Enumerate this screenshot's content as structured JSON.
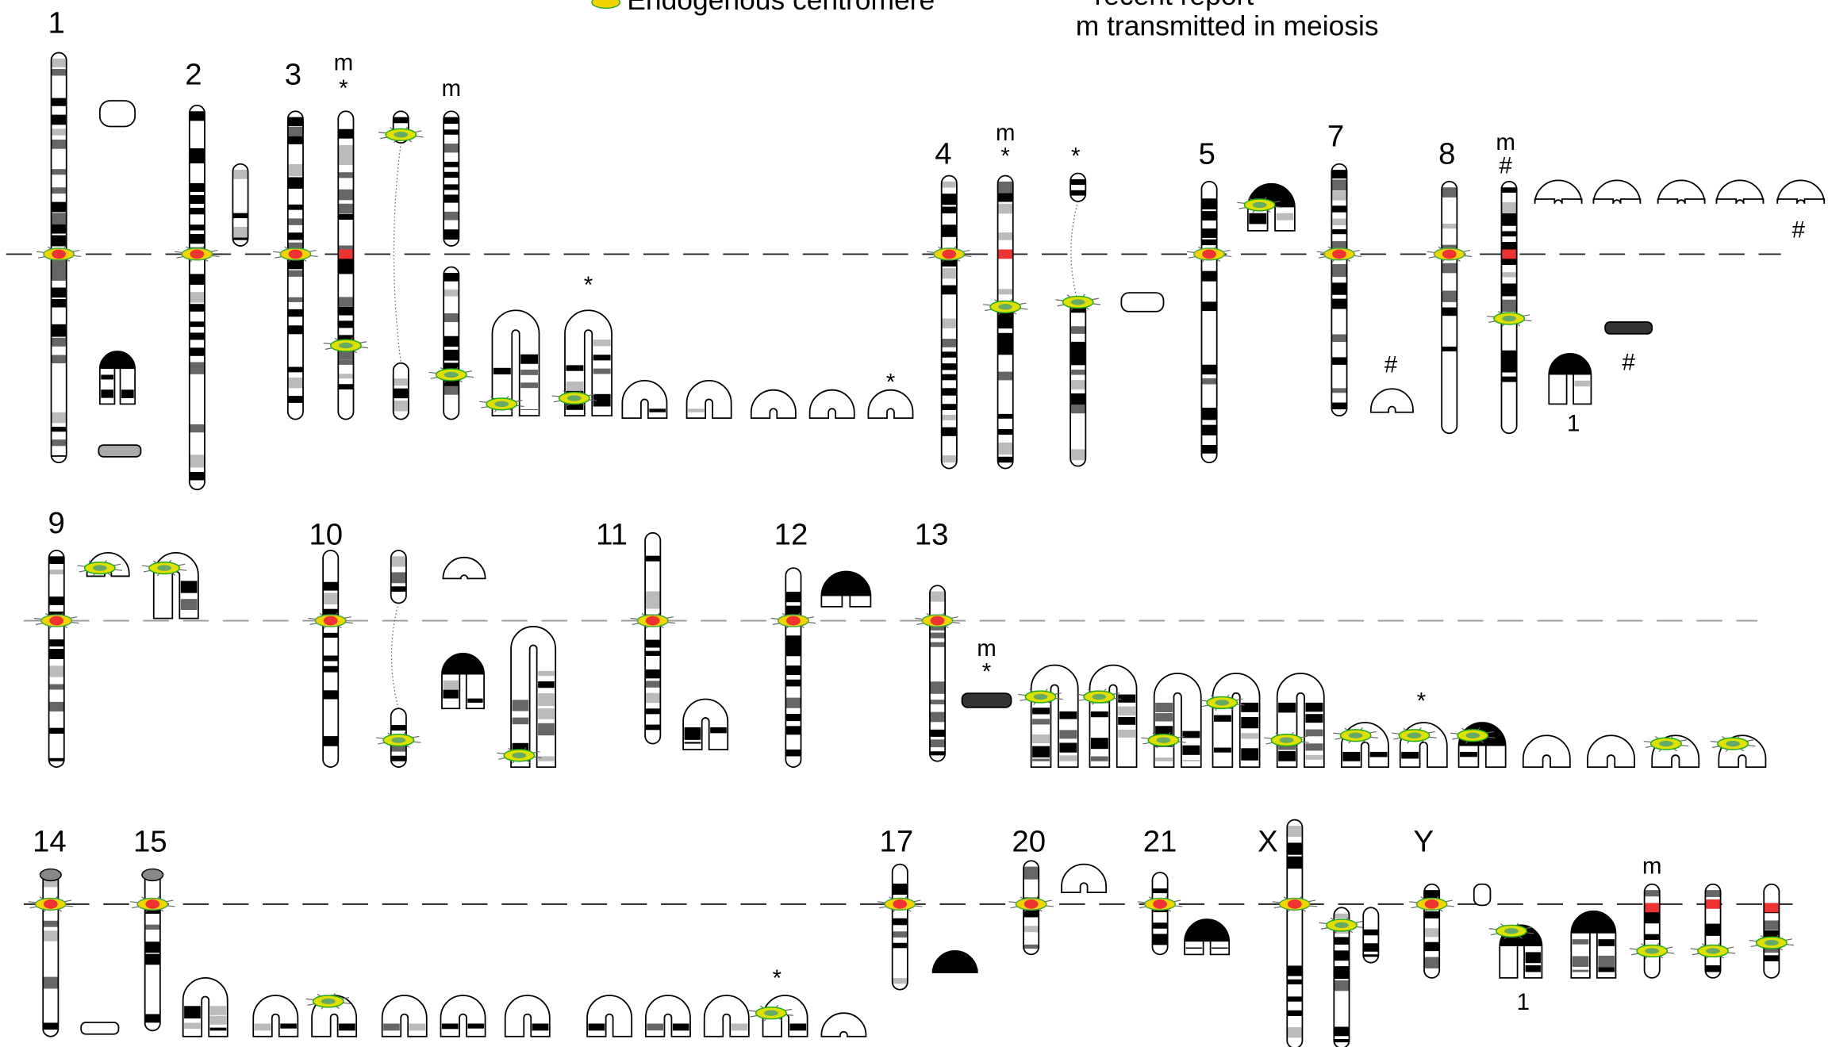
{
  "legend": {
    "endogenous": "Endogenous centromere",
    "recent": "* recent report",
    "meiosis": "m transmitted in meiosis"
  },
  "chromosome_labels": [
    "1",
    "2",
    "3",
    "4",
    "5",
    "7",
    "8",
    "9",
    "10",
    "11",
    "12",
    "13",
    "14",
    "15",
    "17",
    "20",
    "21",
    "X",
    "Y"
  ],
  "annotations": [
    "m",
    "*",
    "m",
    "*",
    "*",
    "m",
    "*",
    "*",
    "#",
    "m",
    "#",
    "1",
    "#",
    "#",
    "m",
    "*",
    "*",
    "*",
    "m",
    "1"
  ]
}
